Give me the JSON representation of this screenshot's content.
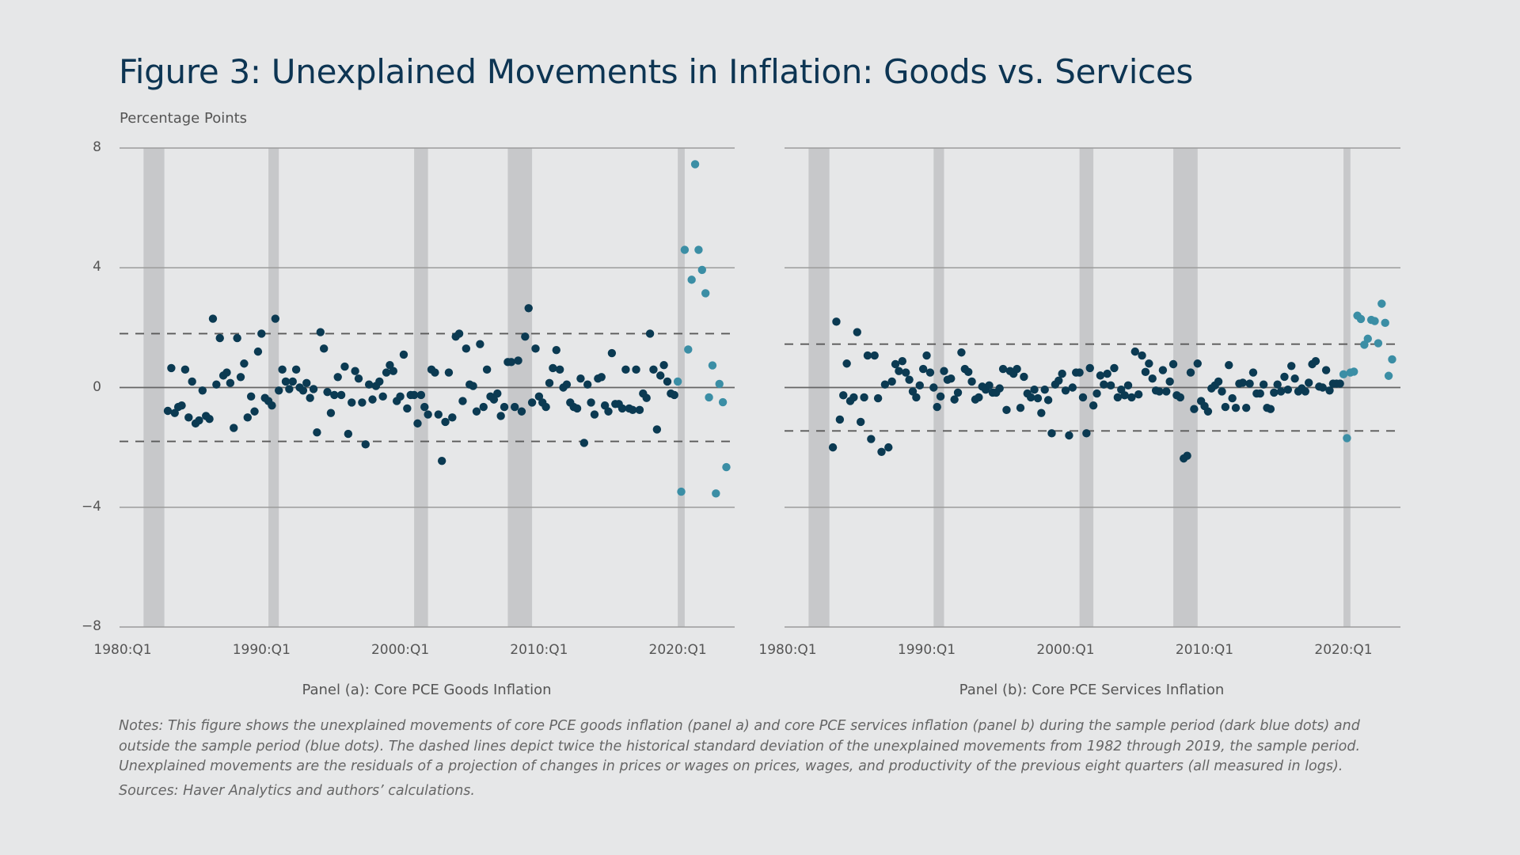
{
  "title": "Figure 3: Unexplained Movements in Inflation: Goods vs. Services",
  "notes": "Notes: This figure shows the unexplained movements of core PCE goods inflation (panel a) and core PCE services inflation (panel b) during the sample period (dark blue dots) and outside the sample period (blue dots). The dashed lines depict twice the historical standard deviation of the unexplained movements from 1982 through 2019, the sample period. Unexplained movements are the residuals of a projection of changes in prices or wages on prices, wages, and productivity of the previous eight quarters (all measured in logs).",
  "sources": "Sources: Haver Analytics and authors’ calculations.",
  "colors": {
    "in_sample": "#0b3a52",
    "out_of_sample": "#3b8ea5",
    "recession": "#c7c8ca",
    "title": "#0d3553"
  },
  "chart_data": [
    {
      "type": "scatter",
      "title": "Panel (a): Core PCE Goods Inflation",
      "ylabel": "Percentage Points",
      "ylim": [
        -8,
        8
      ],
      "yticks": [
        "8",
        "4",
        "0",
        "−4",
        "−8"
      ],
      "ytick_values": [
        8,
        4,
        0,
        -4,
        -8
      ],
      "xticks": [
        "1980:Q1",
        "1990:Q1",
        "2000:Q1",
        "2010:Q1",
        "2020:Q1"
      ],
      "grid": true,
      "reference_lines": [
        1.8,
        -1.8
      ],
      "recessions": [
        [
          "1981:Q3",
          "1982:Q4"
        ],
        [
          "1990:Q3",
          "1991:Q1"
        ],
        [
          "2001:Q1",
          "2001:Q4"
        ],
        [
          "2007:Q4",
          "2009:Q2"
        ],
        [
          "2020:Q1",
          "2020:Q2"
        ]
      ],
      "series": [
        {
          "sample": "in",
          "values_by_year_quarter": {
            "1983": [
              null,
              -0.78,
              0.65,
              -0.85
            ],
            "1984": [
              -0.65,
              -0.6,
              0.6,
              -1.0
            ],
            "1985": [
              0.2,
              -1.2,
              -1.1,
              -0.1
            ],
            "1986": [
              -0.95,
              -1.05,
              2.3,
              0.1
            ],
            "1987": [
              1.65,
              0.4,
              0.5,
              0.15
            ],
            "1988": [
              -1.35,
              1.65,
              0.35,
              0.8
            ],
            "1989": [
              -1.0,
              -0.3,
              -0.8,
              1.2
            ],
            "1990": [
              1.8,
              -0.35,
              -0.45,
              -0.6
            ],
            "1991": [
              2.3,
              -0.1,
              0.6,
              0.2
            ],
            "1992": [
              -0.05,
              0.2,
              0.6,
              0
            ],
            "1993": [
              -0.1,
              0.15,
              -0.35,
              -0.05
            ],
            "1994": [
              -1.5,
              1.85,
              1.3,
              -0.15
            ],
            "1995": [
              -0.85,
              -0.25,
              0.35,
              -0.25
            ],
            "1996": [
              0.7,
              -1.55,
              -0.5,
              0.55
            ],
            "1997": [
              0.3,
              -0.5,
              -1.9,
              0.1
            ],
            "1998": [
              -0.4,
              0.05,
              0.2,
              -0.3
            ],
            "1999": [
              0.5,
              0.75,
              0.55,
              -0.45
            ],
            "2000": [
              -0.3,
              1.1,
              -0.7,
              -0.25
            ],
            "2001": [
              -0.25,
              -1.2,
              -0.25,
              -0.65
            ],
            "2002": [
              -0.9,
              0.6,
              0.5,
              -0.9
            ],
            "2003": [
              -2.45,
              -1.15,
              0.5,
              -1.0
            ],
            "2004": [
              1.7,
              1.8,
              -0.45,
              1.3
            ],
            "2005": [
              0.1,
              0.05,
              -0.8,
              1.45
            ],
            "2006": [
              -0.65,
              0.6,
              -0.3,
              -0.4
            ],
            "2007": [
              -0.2,
              -0.95,
              -0.65,
              0.85
            ],
            "2008": [
              0.85,
              -0.65,
              0.9,
              -0.8
            ],
            "2009": [
              1.7,
              2.65,
              -0.5,
              1.3
            ],
            "2010": [
              -0.3,
              -0.5,
              -0.65,
              0.15
            ],
            "2011": [
              0.65,
              1.25,
              0.6,
              0
            ],
            "2012": [
              0.1,
              -0.5,
              -0.65,
              -0.7
            ],
            "2013": [
              0.3,
              -1.85,
              0.1,
              -0.5
            ],
            "2014": [
              -0.9,
              0.3,
              0.35,
              -0.6
            ],
            "2015": [
              -0.8,
              1.15,
              -0.55,
              -0.55
            ],
            "2016": [
              -0.7,
              0.6,
              -0.7,
              -0.75
            ],
            "2017": [
              0.6,
              -0.75,
              -0.2,
              -0.35
            ],
            "2018": [
              1.8,
              0.6,
              -1.4,
              0.4
            ],
            "2019": [
              0.75,
              0.2,
              -0.2,
              -0.25
            ]
          }
        },
        {
          "sample": "out",
          "values_by_year_quarter": {
            "2020": [
              0.2,
              -3.48,
              4.6,
              1.27
            ],
            "2021": [
              3.6,
              7.46,
              4.6,
              3.93
            ],
            "2022": [
              3.15,
              -0.33,
              0.74,
              -3.54
            ],
            "2023": [
              0.12,
              -0.49,
              -2.66
            ]
          }
        }
      ]
    },
    {
      "type": "scatter",
      "title": "Panel (b): Core PCE Services Inflation",
      "ylim": [
        -8,
        8
      ],
      "xticks": [
        "1980:Q1",
        "1990:Q1",
        "2000:Q1",
        "2010:Q1",
        "2020:Q1"
      ],
      "grid": true,
      "reference_lines": [
        1.45,
        -1.45
      ],
      "recessions": [
        [
          "1981:Q3",
          "1982:Q4"
        ],
        [
          "1990:Q3",
          "1991:Q1"
        ],
        [
          "2001:Q1",
          "2001:Q4"
        ],
        [
          "2007:Q4",
          "2009:Q2"
        ],
        [
          "2020:Q1",
          "2020:Q2"
        ]
      ],
      "series": [
        {
          "sample": "in",
          "values_by_year_quarter": {
            "1983": [
              null,
              -2.0,
              2.2,
              -1.07
            ],
            "1984": [
              -0.26,
              0.8,
              -0.45,
              -0.33
            ],
            "1985": [
              1.85,
              -1.15,
              -0.33,
              1.07
            ],
            "1986": [
              -1.72,
              1.07,
              -0.36,
              -2.15
            ],
            "1987": [
              0.1,
              -2.0,
              0.2,
              0.78
            ],
            "1988": [
              0.55,
              0.88,
              0.5,
              0.26
            ],
            "1989": [
              -0.13,
              -0.33,
              0.07,
              0.62
            ],
            "1990": [
              1.07,
              0.5,
              0,
              -0.65
            ],
            "1991": [
              -0.3,
              0.55,
              0.26,
              0.3
            ],
            "1992": [
              -0.4,
              -0.17,
              1.17,
              0.62
            ],
            "1993": [
              0.52,
              0.2,
              -0.4,
              -0.33
            ],
            "1994": [
              0.03,
              -0.07,
              0.07,
              -0.17
            ],
            "1995": [
              -0.17,
              -0.03,
              0.62,
              -0.75
            ],
            "1996": [
              0.55,
              0.46,
              0.62,
              -0.68
            ],
            "1997": [
              0.36,
              -0.2,
              -0.33,
              -0.07
            ],
            "1998": [
              -0.36,
              -0.85,
              -0.07,
              -0.42
            ],
            "1999": [
              -1.53,
              0.1,
              0.23,
              0.46
            ],
            "2000": [
              -0.1,
              -1.6,
              0,
              0.5
            ],
            "2001": [
              0.5,
              -0.33,
              -1.53,
              0.65
            ],
            "2002": [
              -0.6,
              -0.2,
              0.4,
              0.1
            ],
            "2003": [
              0.46,
              0.07,
              0.65,
              -0.33
            ],
            "2004": [
              -0.07,
              -0.26,
              0.07,
              -0.33
            ],
            "2005": [
              1.2,
              -0.23,
              1.07,
              0.52
            ],
            "2006": [
              0.8,
              0.3,
              -0.1,
              -0.13
            ],
            "2007": [
              0.58,
              -0.13,
              0.2,
              0.78
            ],
            "2008": [
              -0.26,
              -0.33,
              -2.37,
              -2.28
            ],
            "2009": [
              0.5,
              -0.72,
              0.8,
              -0.45
            ],
            "2010": [
              -0.62,
              -0.8,
              -0.03,
              0.07
            ],
            "2011": [
              0.2,
              -0.13,
              -0.65,
              0.75
            ],
            "2012": [
              -0.36,
              -0.68,
              0.13,
              0.16
            ],
            "2013": [
              -0.68,
              0.13,
              0.5,
              -0.2
            ],
            "2014": [
              -0.2,
              0.1,
              -0.68,
              -0.72
            ],
            "2015": [
              -0.17,
              0.1,
              -0.13,
              0.36
            ],
            "2016": [
              -0.07,
              0.72,
              0.3,
              -0.13
            ],
            "2017": [
              -0.03,
              -0.13,
              0.16,
              0.78
            ],
            "2018": [
              0.88,
              0.03,
              0,
              0.58
            ],
            "2019": [
              -0.1,
              0.13,
              0.13,
              0.13
            ]
          }
        },
        {
          "sample": "out",
          "values_by_year_quarter": {
            "2020": [
              0.44,
              -1.69,
              0.5,
              0.53
            ],
            "2021": [
              2.4,
              2.29,
              1.43,
              1.63
            ],
            "2022": [
              2.26,
              2.22,
              1.48,
              2.8
            ],
            "2023": [
              2.16,
              0.39,
              0.94
            ]
          }
        }
      ]
    }
  ]
}
